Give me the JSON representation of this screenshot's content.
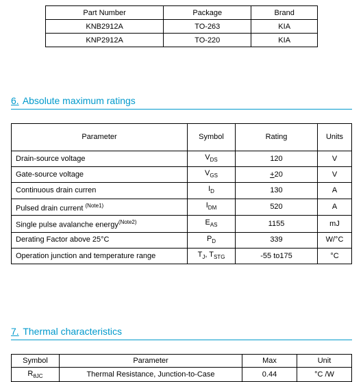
{
  "pkg_table": {
    "headers": [
      "Part Number",
      "Package",
      "Brand"
    ],
    "rows": [
      [
        "KNB2912A",
        "TO-263",
        "KIA"
      ],
      [
        "KNP2912A",
        "TO-220",
        "KIA"
      ]
    ]
  },
  "section6": {
    "num": "6.",
    "title": "Absolute maximum ratings"
  },
  "ratings_table": {
    "headers": [
      "Parameter",
      "Symbol",
      "Rating",
      "Units"
    ],
    "rows": [
      {
        "param": "Drain-source voltage",
        "sym_pre": "V",
        "sym_sub": "DS",
        "rating": "120",
        "unit": "V"
      },
      {
        "param": "Gate-source voltage",
        "sym_pre": "V",
        "sym_sub": "GS",
        "rating_pre": "+",
        "rating_underline": "20",
        "unit": "V"
      },
      {
        "param": "Continuous drain curren",
        "sym_pre": "I",
        "sym_sub": "D",
        "rating": "130",
        "unit": "A"
      },
      {
        "param_pre": "Pulsed drain current ",
        "param_note": "(Note1)",
        "sym_pre": "I",
        "sym_sub": "DM",
        "rating": "520",
        "unit": "A"
      },
      {
        "param_pre": "Single pulse avalanche energy",
        "param_note": "(Note2)",
        "sym_pre": "E",
        "sym_sub": "AS",
        "rating": "1155",
        "unit": "mJ"
      },
      {
        "param": "Derating Factor above 25°C",
        "sym_pre": "P",
        "sym_sub": "D",
        "rating": "339",
        "unit": "W/°C"
      },
      {
        "param": "Operation junction and temperature range",
        "sym_pre": "T",
        "sym_sub": "J",
        "sym_sep": ", ",
        "sym2_pre": "T",
        "sym2_sub": "STG",
        "rating": "-55 to175",
        "unit": "°C"
      }
    ]
  },
  "section7": {
    "num": "7.",
    "title": "Thermal characteristics"
  },
  "thermal_table": {
    "headers": [
      "Symbol",
      "Parameter",
      "Max",
      "Unit"
    ],
    "row": {
      "sym_pre": "R",
      "sym_sub": "θJC",
      "param": "Thermal Resistance, Junction-to-Case",
      "max": "0.44",
      "unit": "°C /W"
    }
  }
}
